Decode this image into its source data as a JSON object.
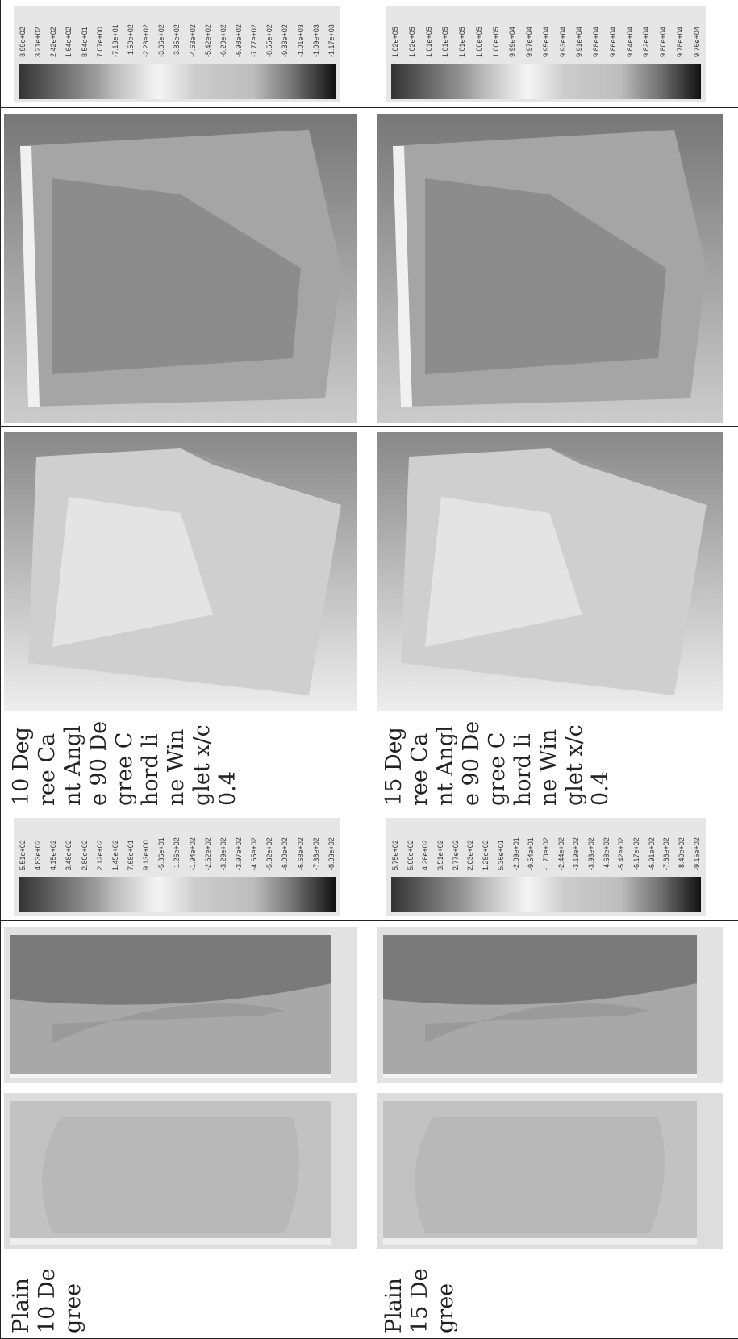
{
  "rows": [
    {
      "plain_label": "Plain 10 Degree",
      "plain_legend": [
        "5.51e+02",
        "4.83e+02",
        "4.15e+02",
        "3.48e+02",
        "2.80e+02",
        "2.12e+02",
        "1.45e+02",
        "7.68e+01",
        "9.13e+00",
        "-5.86e+01",
        "-1.26e+02",
        "-1.94e+02",
        "-2.62e+02",
        "-3.29e+02",
        "-3.97e+02",
        "-4.65e+02",
        "-5.32e+02",
        "-6.00e+02",
        "-6.68e+02",
        "-7.36e+02",
        "-8.03e+02"
      ],
      "winglet_label": "10 Degree Cant Angle 90 Degree Chord line Winglet x/c 0.4",
      "winglet_legend": [
        "3.99e+02",
        "3.21e+02",
        "2.42e+02",
        "1.64e+02",
        "8.54e+01",
        "7.07e+00",
        "-7.13e+01",
        "-1.50e+02",
        "-2.28e+02",
        "-3.06e+02",
        "-3.85e+02",
        "-4.63e+02",
        "-5.42e+02",
        "-6.20e+02",
        "-6.98e+02",
        "-7.77e+02",
        "-8.55e+02",
        "-9.33e+02",
        "-1.01e+03",
        "-1.09e+03",
        "-1.17e+03"
      ]
    },
    {
      "plain_label": "Plain 15 Degree",
      "plain_legend": [
        "5.75e+02",
        "5.00e+02",
        "4.26e+02",
        "3.51e+02",
        "2.77e+02",
        "2.03e+02",
        "1.28e+02",
        "5.36e+01",
        "-2.09e+01",
        "-9.54e+01",
        "-1.70e+02",
        "-2.44e+02",
        "-3.19e+02",
        "-3.93e+02",
        "-4.68e+02",
        "-5.42e+02",
        "-6.17e+02",
        "-6.91e+02",
        "-7.66e+02",
        "-8.40e+02",
        "-9.15e+02"
      ],
      "winglet_label": "15 Degree Cant Angle 90 Degree Chord line Winglet x/c 0.4",
      "winglet_legend": [
        "1.02e+05",
        "1.02e+05",
        "1.01e+05",
        "1.01e+05",
        "1.01e+05",
        "1.00e+05",
        "1.00e+05",
        "9.99e+04",
        "9.97e+04",
        "9.95e+04",
        "9.93e+04",
        "9.91e+04",
        "9.88e+04",
        "9.86e+04",
        "9.84e+04",
        "9.82e+04",
        "9.80e+04",
        "9.78e+04",
        "9.76e+04"
      ]
    }
  ]
}
